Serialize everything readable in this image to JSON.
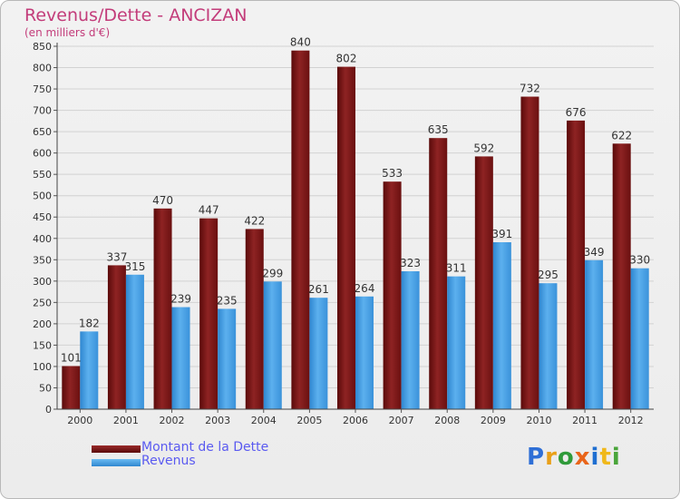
{
  "chart_data": {
    "type": "bar",
    "title": "Revenus/Dette - ANCIZAN",
    "subtitle": "(en milliers d'€)",
    "xlabel": "",
    "ylabel": "",
    "categories": [
      "2000",
      "2001",
      "2002",
      "2003",
      "2004",
      "2005",
      "2006",
      "2007",
      "2008",
      "2009",
      "2010",
      "2011",
      "2012"
    ],
    "series": [
      {
        "name": "Montant de la Dette",
        "color": "#8b1a1a",
        "values": [
          101,
          337,
          470,
          447,
          422,
          840,
          802,
          533,
          635,
          592,
          732,
          676,
          622
        ]
      },
      {
        "name": "Revenus",
        "color": "#4ea3e6",
        "values": [
          182,
          315,
          239,
          235,
          299,
          261,
          264,
          323,
          311,
          391,
          295,
          349,
          330
        ]
      }
    ],
    "ylim": [
      0,
      850
    ],
    "yticks": [
      0,
      50,
      100,
      150,
      200,
      250,
      300,
      350,
      400,
      450,
      500,
      550,
      600,
      650,
      700,
      750,
      800,
      850
    ],
    "grid": true,
    "legend_position": "bottom-left"
  },
  "brand": {
    "text": "Proxiti",
    "colors": [
      "#2f6fd6",
      "#e9a019",
      "#2f9a3a",
      "#e9651a",
      "#1f6fd1",
      "#f0b81a",
      "#4aa53a"
    ]
  }
}
